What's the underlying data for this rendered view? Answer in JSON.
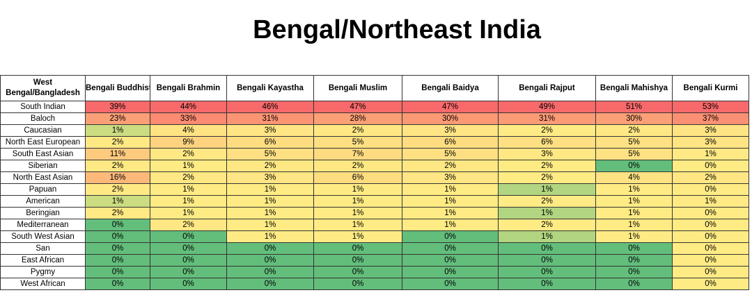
{
  "header": {
    "title": "Bengal/Northeast India"
  },
  "color_scale": [
    "#63be7b",
    "#ffeb84",
    "#f8696b"
  ],
  "table": {
    "columns": [
      "West Bengal/Bangladesh",
      "Bengali Buddhist",
      "Bengali Brahmin",
      "Bengali Kayastha",
      "Bengali Muslim",
      "Bengali Baidya",
      "Bengali Rajput",
      "Bengali Mahishya",
      "Bengali Kurmi"
    ],
    "rows": [
      [
        "South Indian",
        "39%",
        "44%",
        "46%",
        "47%",
        "47%",
        "49%",
        "51%",
        "53%"
      ],
      [
        "Baloch",
        "23%",
        "33%",
        "31%",
        "28%",
        "30%",
        "31%",
        "30%",
        "37%"
      ],
      [
        "Caucasian",
        "1%",
        "4%",
        "3%",
        "2%",
        "3%",
        "2%",
        "2%",
        "3%"
      ],
      [
        "North East European",
        "2%",
        "9%",
        "6%",
        "5%",
        "6%",
        "6%",
        "5%",
        "3%"
      ],
      [
        "South East Asian",
        "11%",
        "2%",
        "5%",
        "7%",
        "5%",
        "3%",
        "5%",
        "1%"
      ],
      [
        "Siberian",
        "2%",
        "1%",
        "2%",
        "2%",
        "2%",
        "2%",
        "0%",
        "0%"
      ],
      [
        "North East Asian",
        "16%",
        "2%",
        "3%",
        "6%",
        "3%",
        "2%",
        "4%",
        "2%"
      ],
      [
        "Papuan",
        "2%",
        "1%",
        "1%",
        "1%",
        "1%",
        "1%",
        "1%",
        "0%"
      ],
      [
        "American",
        "1%",
        "1%",
        "1%",
        "1%",
        "1%",
        "2%",
        "1%",
        "1%"
      ],
      [
        "Beringian",
        "2%",
        "1%",
        "1%",
        "1%",
        "1%",
        "1%",
        "1%",
        "0%"
      ],
      [
        "Mediterranean",
        "0%",
        "2%",
        "1%",
        "1%",
        "1%",
        "2%",
        "1%",
        "0%"
      ],
      [
        "South West Asian",
        "0%",
        "0%",
        "1%",
        "1%",
        "0%",
        "1%",
        "1%",
        "0%"
      ],
      [
        "San",
        "0%",
        "0%",
        "0%",
        "0%",
        "0%",
        "0%",
        "0%",
        "0%"
      ],
      [
        "East African",
        "0%",
        "0%",
        "0%",
        "0%",
        "0%",
        "0%",
        "0%",
        "0%"
      ],
      [
        "Pygmy",
        "0%",
        "0%",
        "0%",
        "0%",
        "0%",
        "0%",
        "0%",
        "0%"
      ],
      [
        "West African",
        "0%",
        "0%",
        "0%",
        "0%",
        "0%",
        "0%",
        "0%",
        "0%"
      ]
    ]
  }
}
